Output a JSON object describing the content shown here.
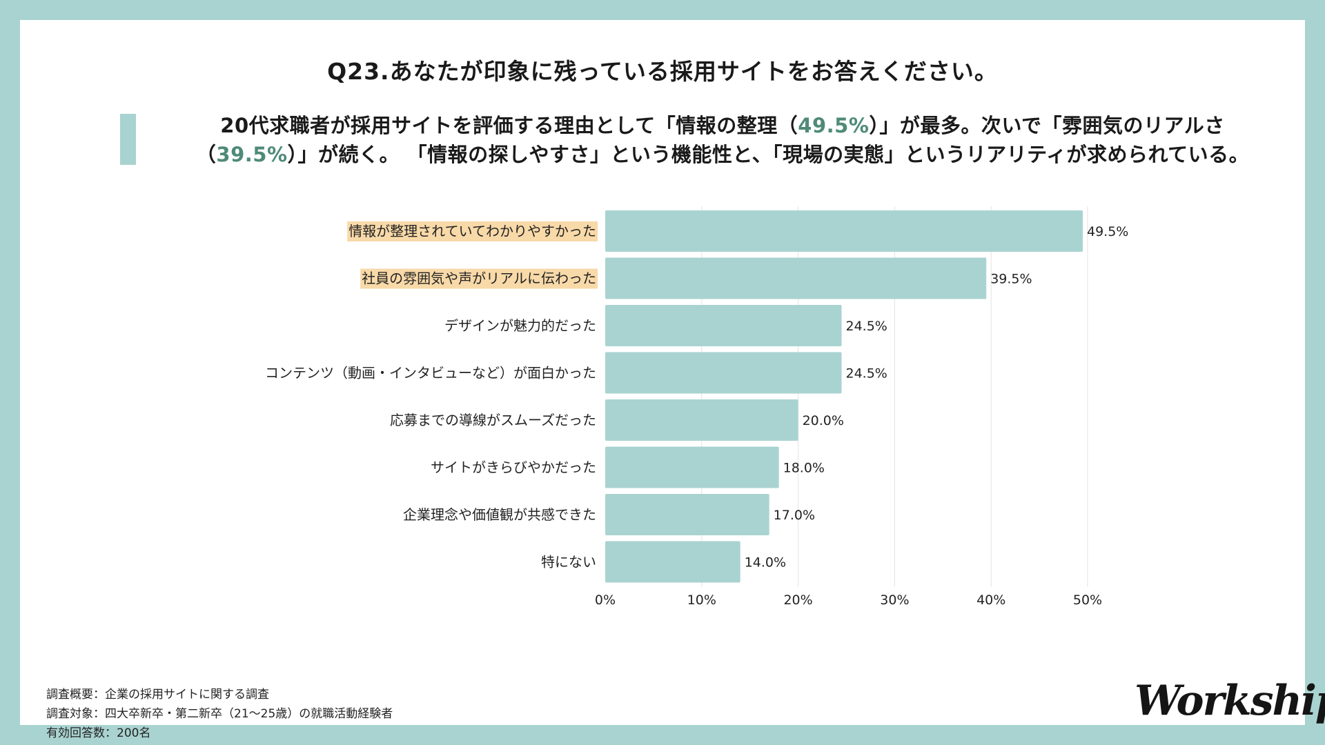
{
  "title": "Q23.あなたが印象に残っている採用サイトをお答えください。",
  "summary": {
    "line1_a": "20代求職者が採用サイトを評価する理由として「情報の整理（",
    "line1_hl": "49.5%",
    "line1_b": "）」が最多。次いで「雰囲気のリアルさ",
    "line2_a": "（",
    "line2_hl": "39.5%",
    "line2_b": "）」が続く。 「情報の探しやすさ」という機能性と、「現場の実態」というリアリティが求められている。"
  },
  "colors": {
    "bar": "#a9d3d0",
    "frame": "#a9d3d0",
    "highlight_label": "#f8d9a8",
    "accent_text": "#4f8a78",
    "grid": "#e3e3e3"
  },
  "chart_data": {
    "type": "bar",
    "orientation": "horizontal",
    "categories": [
      "情報が整理されていてわかりやすかった",
      "社員の雰囲気や声がリアルに伝わった",
      "デザインが魅力的だった",
      "コンテンツ（動画・インタビューなど）が面白かった",
      "応募までの導線がスムーズだった",
      "サイトがきらびやかだった",
      "企業理念や価値観が共感できた",
      "特にない"
    ],
    "values": [
      49.5,
      39.5,
      24.5,
      24.5,
      20.0,
      18.0,
      17.0,
      14.0
    ],
    "value_labels": [
      "49.5%",
      "39.5%",
      "24.5%",
      "24.5%",
      "20.0%",
      "18.0%",
      "17.0%",
      "14.0%"
    ],
    "highlighted": [
      true,
      true,
      false,
      false,
      false,
      false,
      false,
      false
    ],
    "xlim": [
      0,
      50
    ],
    "xticks": [
      0,
      10,
      20,
      30,
      40,
      50
    ],
    "xtick_labels": [
      "0%",
      "10%",
      "20%",
      "30%",
      "40%",
      "50%"
    ],
    "grid": true,
    "legend": "none"
  },
  "footnote": {
    "line1": "調査概要：企業の採用サイトに関する調査",
    "line2": "調査対象：四大卒新卒・第二新卒（21〜25歳）の就職活動経験者",
    "line3": "有効回答数：200名"
  },
  "logo": "Workship"
}
